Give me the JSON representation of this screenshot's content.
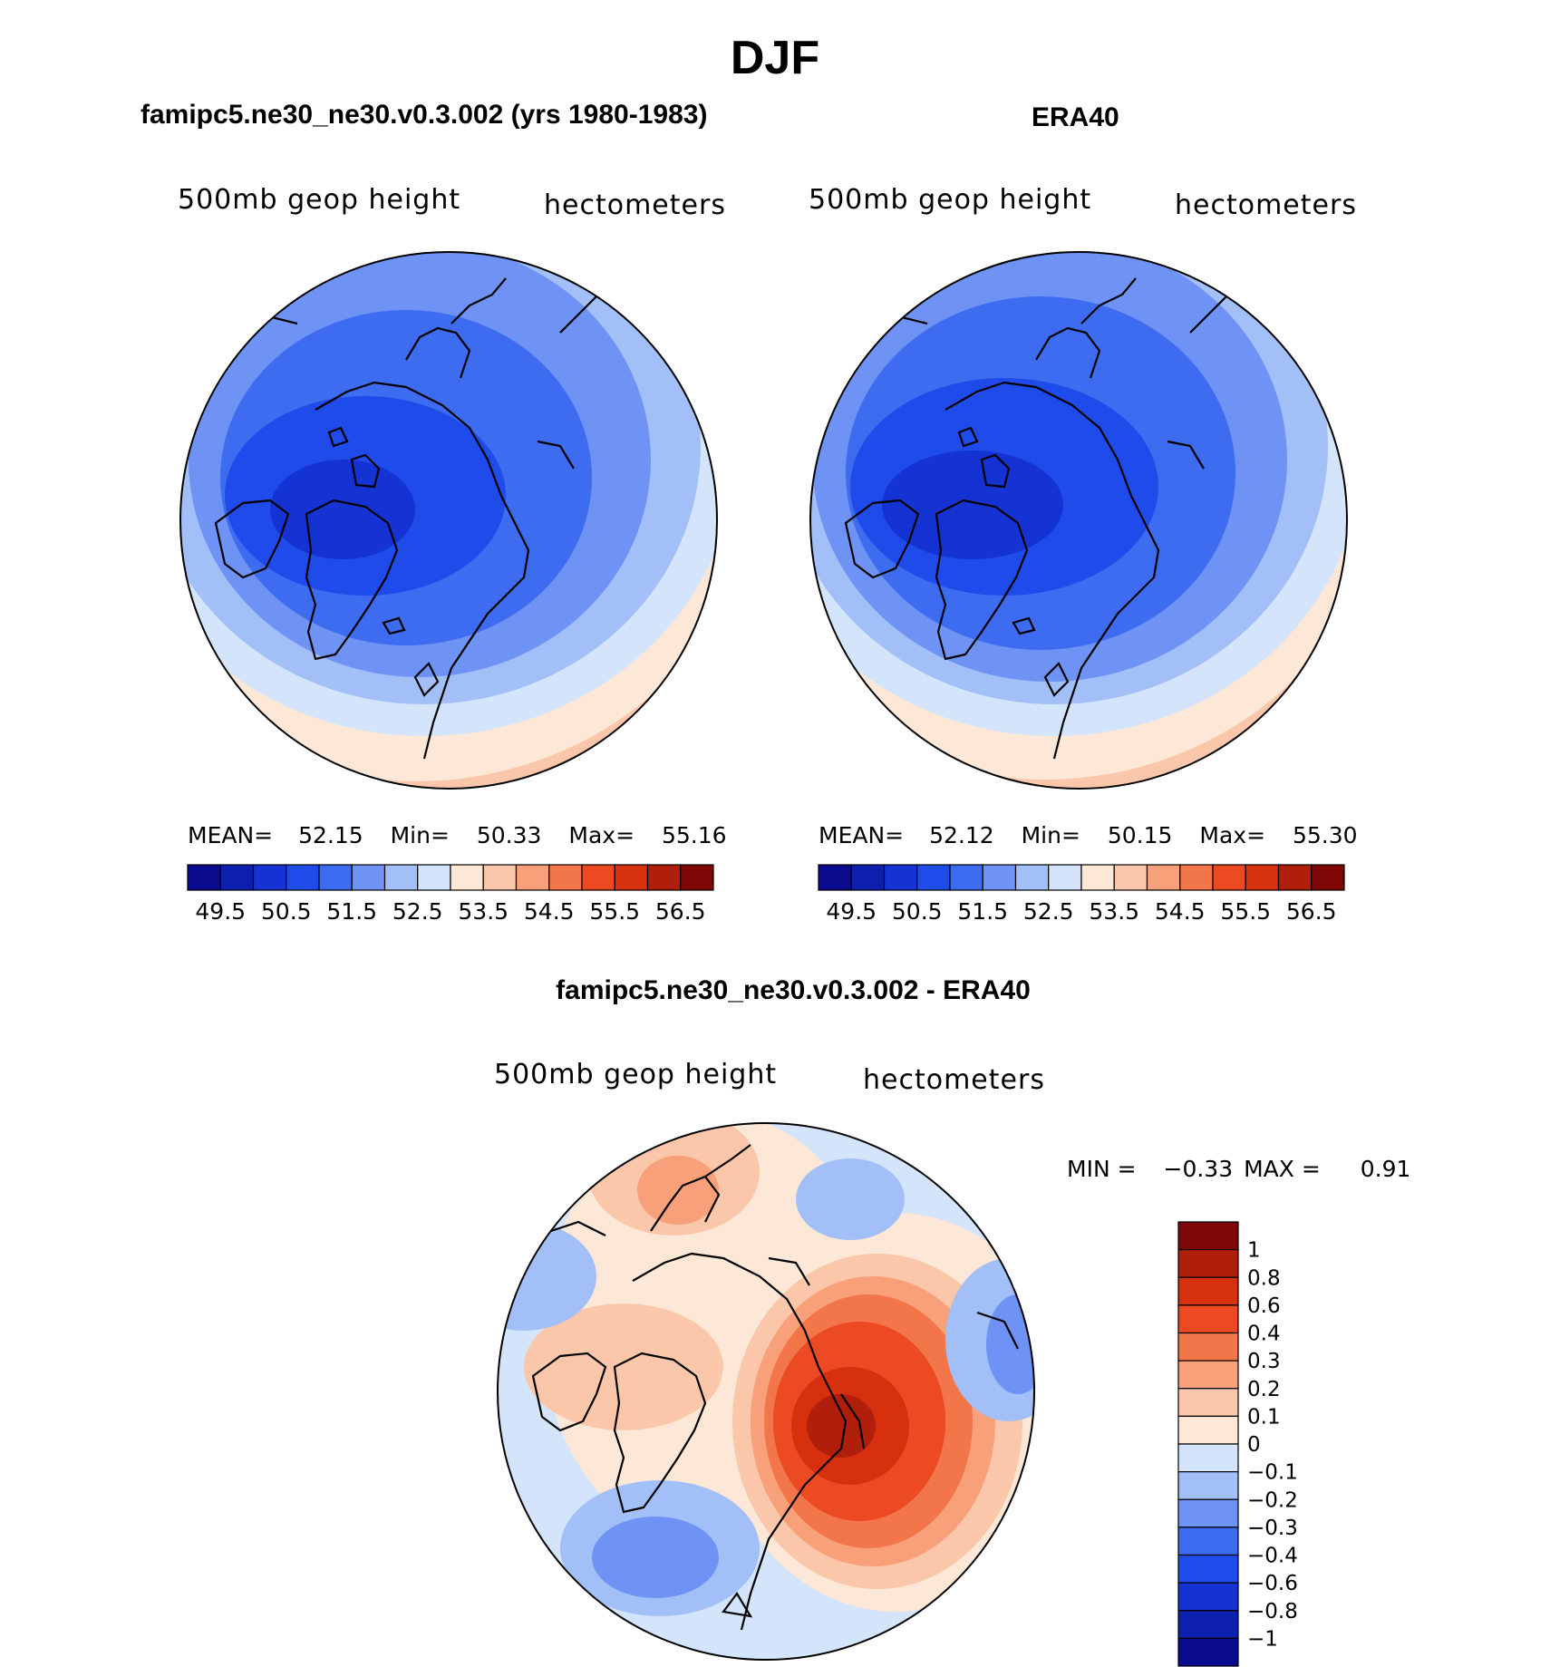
{
  "title": "DJF",
  "panels": [
    {
      "heading": "famipc5.ne30_ne30.v0.3.002 (yrs 1980-1983)",
      "variable": "500mb geop height",
      "units": "hectometers",
      "stats": {
        "mean_label": "MEAN=",
        "mean": "52.15",
        "min_label": "Min=",
        "min": "50.33",
        "max_label": "Max=",
        "max": "55.16"
      }
    },
    {
      "heading": "ERA40",
      "variable": "500mb geop height",
      "units": "hectometers",
      "stats": {
        "mean_label": "MEAN=",
        "mean": "52.12",
        "min_label": "Min=",
        "min": "50.15",
        "max_label": "Max=",
        "max": "55.30"
      }
    }
  ],
  "diff_panel": {
    "heading": "famipc5.ne30_ne30.v0.3.002 - ERA40",
    "variable": "500mb geop height",
    "units": "hectometers",
    "stats": {
      "min_label": "MIN =",
      "min": "−0.33",
      "max_label": "MAX =",
      "max": "0.91"
    }
  },
  "colorbar_top": {
    "colors": [
      "#0a0a8c",
      "#0d1fae",
      "#1433d2",
      "#1f4bea",
      "#3d6cf0",
      "#6e93f5",
      "#a3bff8",
      "#d4e5fb",
      "#fde7d6",
      "#fbc7aa",
      "#f7a07a",
      "#f3764b",
      "#ec4a22",
      "#d7300f",
      "#b01f0b",
      "#7d0707"
    ],
    "labels": [
      "49.5",
      "50.5",
      "51.5",
      "52.5",
      "53.5",
      "54.5",
      "55.5",
      "56.5"
    ]
  },
  "colorbar_diff": {
    "colors": [
      "#7d0707",
      "#b01f0b",
      "#d7300f",
      "#ec4a22",
      "#f3764b",
      "#f7a07a",
      "#fbc7aa",
      "#fde7d6",
      "#d4e5fb",
      "#a3bff8",
      "#6e93f5",
      "#3d6cf0",
      "#1f4bea",
      "#1433d2",
      "#0d1fae",
      "#0a0a8c"
    ],
    "labels": [
      "1",
      "0.8",
      "0.6",
      "0.4",
      "0.3",
      "0.2",
      "0.1",
      "0",
      "−0.1",
      "−0.2",
      "−0.3",
      "−0.4",
      "−0.6",
      "−0.8",
      "−1"
    ]
  }
}
